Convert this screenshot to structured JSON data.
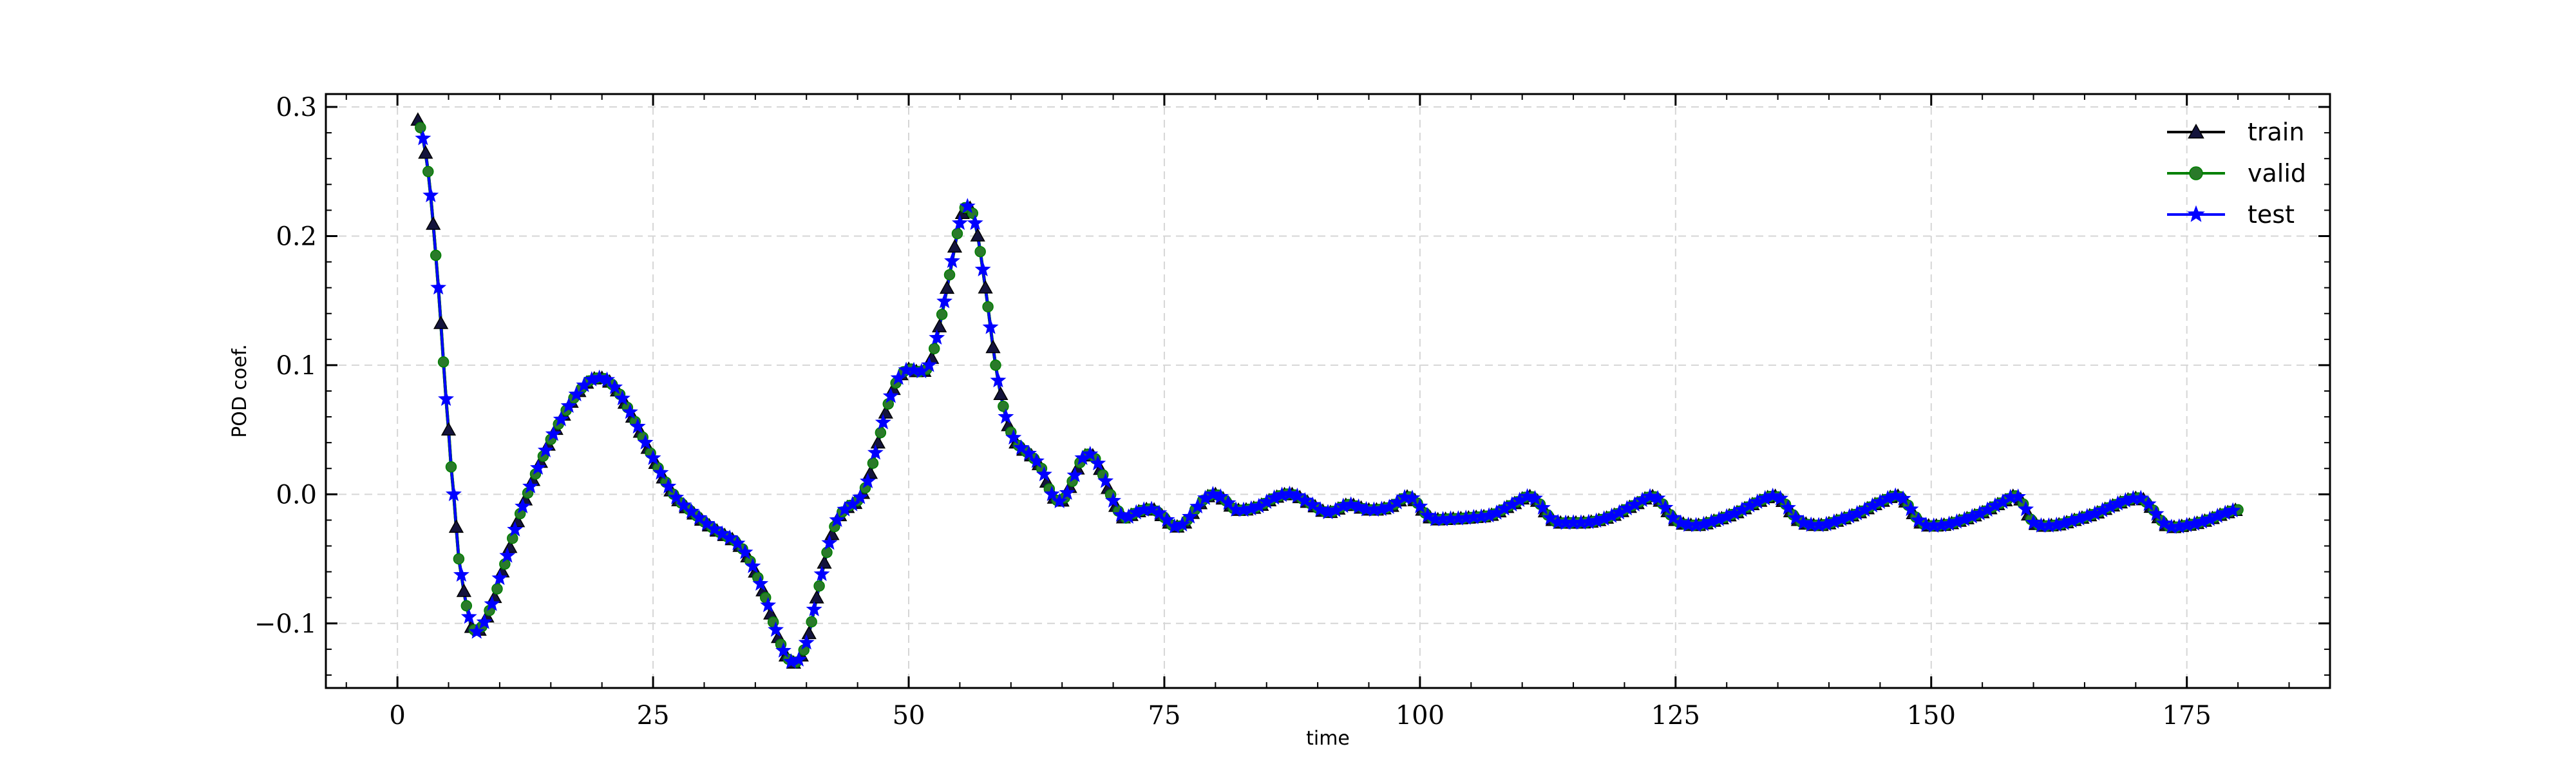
{
  "chart_data": {
    "type": "line",
    "title": "",
    "xlabel": "time",
    "ylabel": "POD coef.",
    "xlim": [
      -7,
      189
    ],
    "ylim": [
      -0.15,
      0.31
    ],
    "xticks": [
      0,
      25,
      50,
      75,
      100,
      125,
      150,
      175
    ],
    "yticks": [
      -0.1,
      0.0,
      0.1,
      0.2,
      0.3
    ],
    "ytick_labels": [
      "−0.1",
      "0.0",
      "0.1",
      "0.2",
      "0.3"
    ],
    "grid": true,
    "legend_position": "top-right",
    "curve": {
      "x": [
        2,
        3,
        4,
        5,
        5.5,
        6,
        7,
        7.5,
        8,
        9,
        10,
        12,
        14,
        16,
        18,
        19.5,
        21,
        23,
        25,
        27,
        29,
        31,
        33,
        34,
        35,
        36,
        37,
        38,
        39,
        40,
        41,
        42,
        43,
        44,
        45,
        46,
        47,
        48,
        49,
        50,
        51,
        52,
        53,
        54,
        55,
        55.7,
        56.5,
        57.5,
        58.5,
        59.5,
        60.5,
        62,
        63,
        64,
        65,
        66,
        67,
        68,
        69,
        70,
        71,
        72,
        73,
        74,
        75,
        76,
        77,
        78,
        79,
        80,
        81,
        82,
        84,
        86,
        87.5,
        89,
        91,
        93,
        95,
        97,
        99,
        101,
        103,
        105,
        107,
        109,
        111,
        113,
        115,
        117,
        119,
        121,
        123,
        125,
        127,
        129,
        131,
        133,
        135,
        137,
        139,
        141,
        143,
        145,
        147,
        149,
        151,
        153,
        155,
        157,
        158.5,
        160,
        162,
        164,
        166,
        168,
        170,
        171,
        173,
        175,
        177,
        179,
        180
      ],
      "y": [
        0.29,
        0.25,
        0.16,
        0.05,
        0.0,
        -0.05,
        -0.095,
        -0.105,
        -0.105,
        -0.09,
        -0.065,
        -0.015,
        0.025,
        0.058,
        0.082,
        0.09,
        0.085,
        0.06,
        0.028,
        0.0,
        -0.015,
        -0.027,
        -0.036,
        -0.045,
        -0.06,
        -0.08,
        -0.105,
        -0.125,
        -0.13,
        -0.115,
        -0.08,
        -0.045,
        -0.02,
        -0.01,
        -0.005,
        0.01,
        0.04,
        0.07,
        0.09,
        0.097,
        0.095,
        0.1,
        0.13,
        0.17,
        0.21,
        0.223,
        0.21,
        0.16,
        0.1,
        0.06,
        0.04,
        0.03,
        0.02,
        0.0,
        -0.005,
        0.01,
        0.028,
        0.03,
        0.015,
        -0.005,
        -0.018,
        -0.015,
        -0.012,
        -0.012,
        -0.018,
        -0.025,
        -0.022,
        -0.012,
        -0.003,
        0.0,
        -0.005,
        -0.012,
        -0.01,
        -0.002,
        0.0,
        -0.006,
        -0.014,
        -0.008,
        -0.012,
        -0.01,
        -0.002,
        -0.018,
        -0.019,
        -0.018,
        -0.016,
        -0.008,
        -0.002,
        -0.02,
        -0.022,
        -0.021,
        -0.016,
        -0.008,
        -0.002,
        -0.02,
        -0.024,
        -0.02,
        -0.014,
        -0.006,
        -0.002,
        -0.02,
        -0.024,
        -0.02,
        -0.014,
        -0.006,
        -0.002,
        -0.022,
        -0.024,
        -0.02,
        -0.014,
        -0.006,
        -0.002,
        -0.022,
        -0.024,
        -0.02,
        -0.015,
        -0.008,
        -0.003,
        -0.006,
        -0.024,
        -0.024,
        -0.02,
        -0.014,
        -0.012
      ]
    },
    "series": [
      {
        "name": "train",
        "color": "#000000",
        "marker": "triangle",
        "marker_fill": "#14143c"
      },
      {
        "name": "valid",
        "color": "#008000",
        "marker": "circle",
        "marker_fill": "#2a7a2a"
      },
      {
        "name": "test",
        "color": "#0000ff",
        "marker": "star",
        "marker_fill": "#0000ff"
      }
    ]
  }
}
